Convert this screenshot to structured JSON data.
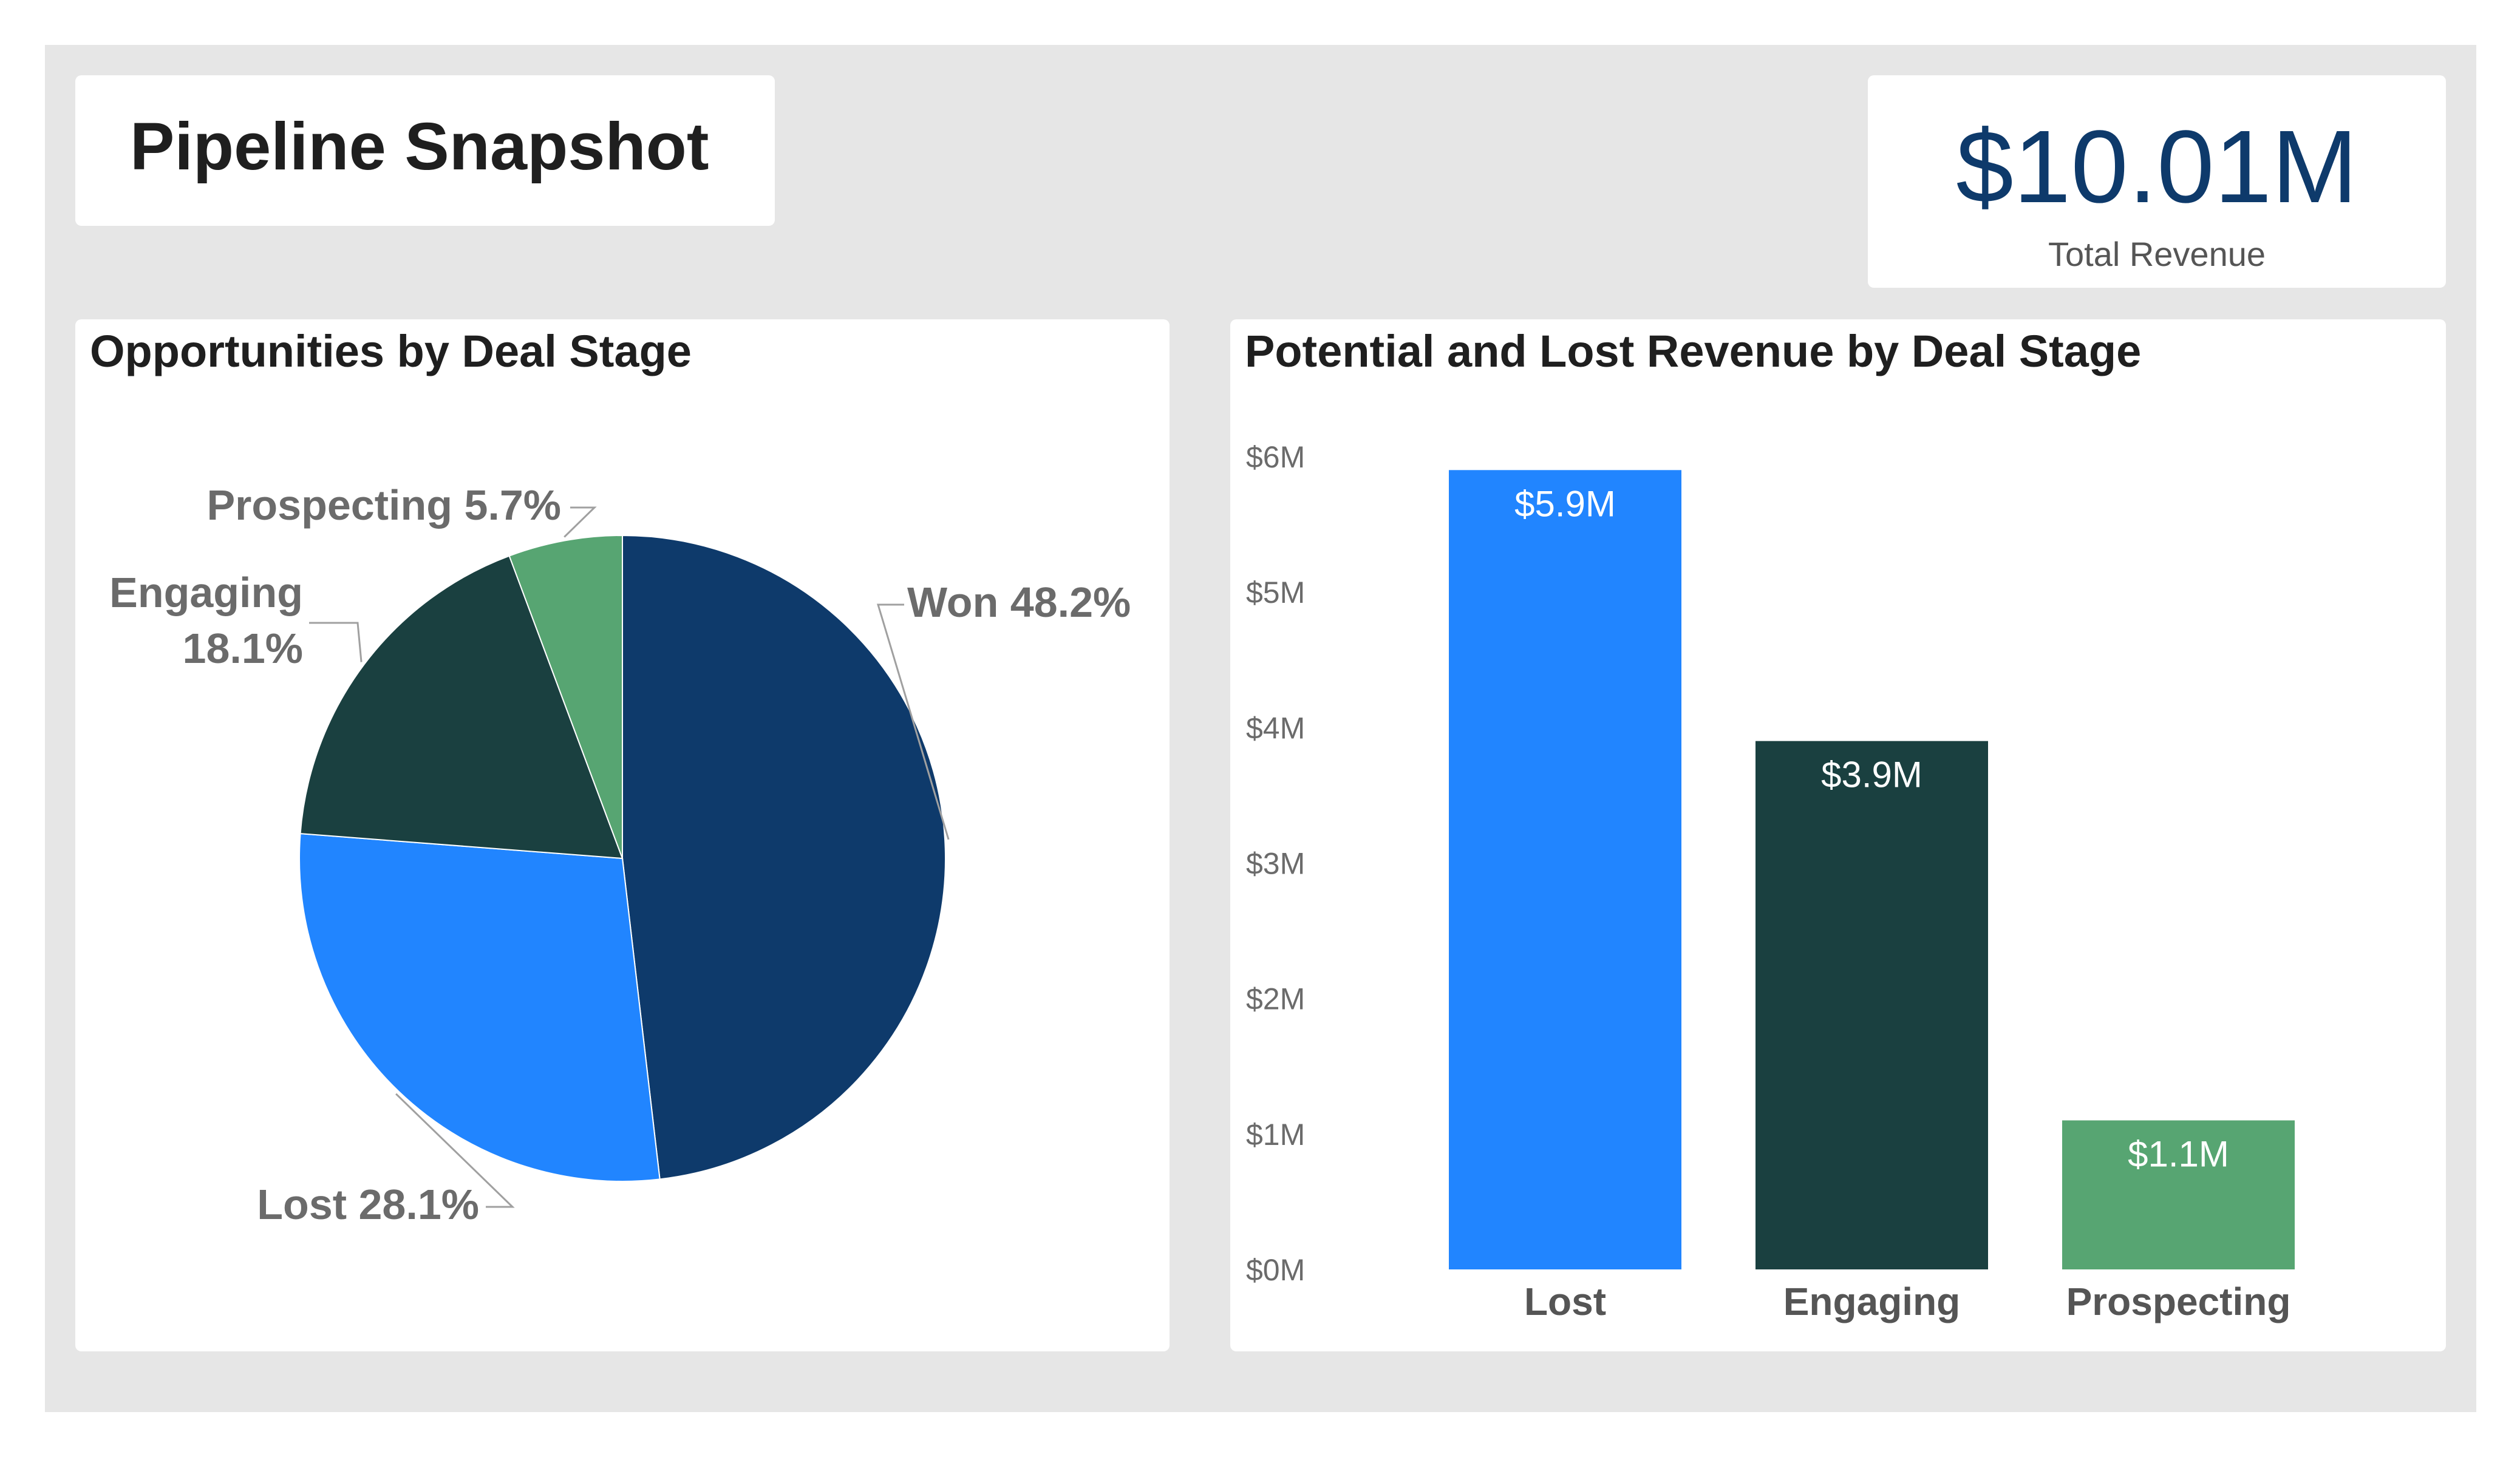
{
  "header": {
    "title": "Pipeline Snapshot"
  },
  "kpi": {
    "value": "$10.01M",
    "label": "Total Revenue"
  },
  "colors": {
    "won": "#0e3a6b",
    "lost": "#2185ff",
    "engaging": "#1a4040",
    "prospecting": "#57a572"
  },
  "chart_data": [
    {
      "type": "pie",
      "title": "Opportunities by Deal Stage",
      "slices": [
        {
          "label": "Won",
          "value": 48.2,
          "display": "Won 48.2%",
          "color": "#0e3a6b"
        },
        {
          "label": "Lost",
          "value": 28.1,
          "display": "Lost 28.1%",
          "color": "#2185ff"
        },
        {
          "label": "Engaging",
          "value": 18.1,
          "display_lines": [
            "Engaging",
            "18.1%"
          ],
          "color": "#1a4040"
        },
        {
          "label": "Prospecting",
          "value": 5.7,
          "display": "Prospecting 5.7%",
          "color": "#57a572"
        }
      ]
    },
    {
      "type": "bar",
      "title": "Potential and Lost Revenue by Deal Stage",
      "categories": [
        "Lost",
        "Engaging",
        "Prospecting"
      ],
      "values": [
        5.9,
        3.9,
        1.1
      ],
      "data_labels": [
        "$5.9M",
        "$3.9M",
        "$1.1M"
      ],
      "colors": [
        "#2185ff",
        "#1a4040",
        "#57a572"
      ],
      "ylim": [
        0,
        6
      ],
      "yticks": [
        "$0M",
        "$1M",
        "$2M",
        "$3M",
        "$4M",
        "$5M",
        "$6M"
      ],
      "grid": false
    }
  ]
}
